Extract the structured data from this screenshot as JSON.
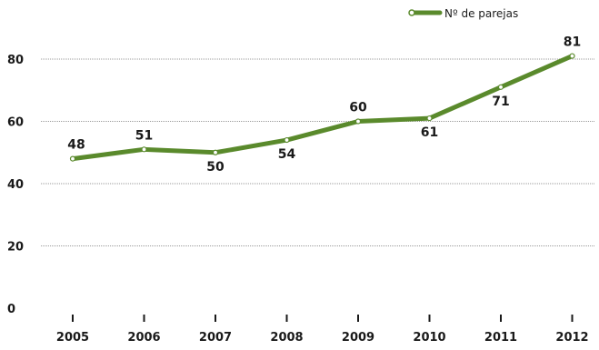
{
  "chart_data": {
    "type": "line",
    "categories": [
      "2005",
      "2006",
      "2007",
      "2008",
      "2009",
      "2010",
      "2011",
      "2012"
    ],
    "series": [
      {
        "name": "Nº de parejas",
        "values": [
          48,
          51,
          50,
          54,
          60,
          61,
          71,
          81
        ]
      }
    ],
    "ylim": [
      0,
      80
    ],
    "yticks": [
      "0",
      "20",
      "40",
      "60",
      "80"
    ],
    "grid": true,
    "legend": "top-right",
    "line_color": "#5a8a2c"
  }
}
